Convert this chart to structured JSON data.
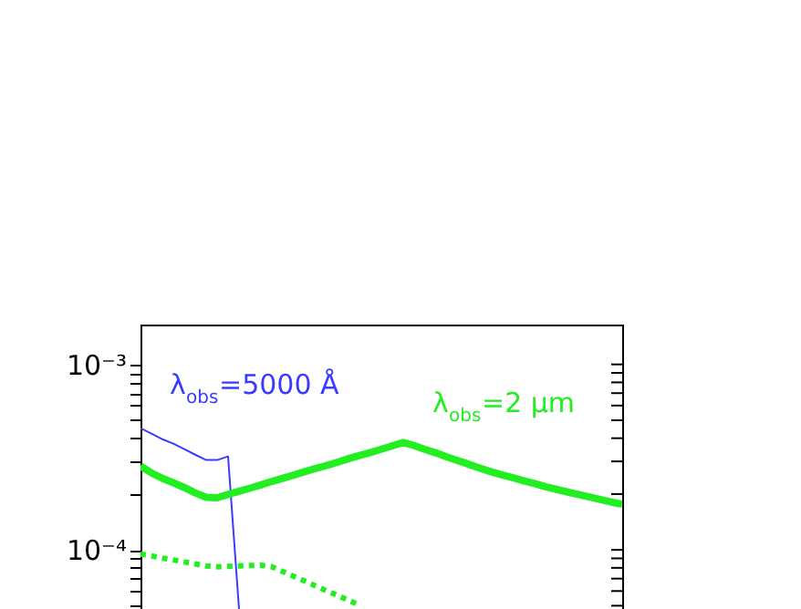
{
  "chart_data": {
    "type": "line",
    "categories": [
      null,
      null,
      null,
      null,
      null,
      null,
      null,
      null,
      null,
      null,
      null,
      null,
      null,
      null,
      null,
      null,
      null,
      null,
      null,
      null,
      null,
      null,
      null,
      null,
      null,
      null,
      null,
      null,
      null,
      null,
      null,
      null,
      null,
      null,
      null,
      null,
      null,
      null,
      null,
      null,
      null,
      null,
      null,
      null,
      null
    ],
    "series": [
      {
        "color": "#3b3bff",
        "line_style": "solid",
        "values": [
          0.000453,
          0.000423,
          0.000395,
          0.000374,
          0.000349,
          0.000326,
          0.000305,
          0.000305,
          0.000319,
          4.8e-05,
          null,
          null,
          null,
          null,
          null,
          null,
          null,
          null,
          null,
          null,
          null,
          null,
          null,
          null,
          null,
          null,
          null,
          null,
          null,
          null,
          null,
          null,
          null,
          null,
          null,
          null,
          null,
          null,
          null,
          null,
          null,
          null,
          null,
          null,
          null
        ]
      },
      {
        "color": "#22ee22",
        "line_style": "solid",
        "values": [
          0.000283,
          0.00026,
          0.000243,
          0.00023,
          0.000217,
          0.000203,
          0.000192,
          0.000191,
          0.000199,
          0.000207,
          0.000215,
          0.000224,
          0.000234,
          0.000243,
          0.000253,
          0.000264,
          0.000275,
          0.000285,
          0.000297,
          0.00031,
          0.000323,
          0.000335,
          0.000349,
          0.000364,
          0.000379,
          0.000365,
          0.000348,
          0.000333,
          0.000317,
          0.000303,
          0.000289,
          0.000276,
          0.000264,
          0.000254,
          0.000245,
          0.000236,
          0.000228,
          0.000219,
          0.000212,
          0.000205,
          0.000199,
          0.000193,
          0.000187,
          0.000181,
          0.000176
        ]
      },
      {
        "color": "#22ee22",
        "line_style": "dotted",
        "values": [
          9.49e-05,
          9.28e-05,
          9.03e-05,
          8.83e-05,
          8.61e-05,
          8.4e-05,
          8.2e-05,
          8.11e-05,
          8.15e-05,
          8.2e-05,
          8.23e-05,
          8.27e-05,
          8.11e-05,
          7.64e-05,
          7.2e-05,
          6.79e-05,
          6.39e-05,
          6.02e-05,
          5.68e-05,
          5.35e-05,
          5.04e-05,
          null,
          null,
          null,
          null,
          null,
          null,
          null,
          null,
          null,
          null,
          null,
          null,
          null,
          null,
          null,
          null,
          null,
          null,
          null,
          null,
          null,
          null,
          null,
          null
        ]
      }
    ],
    "log": true,
    "ylim": [
      4.8e-05,
      0.00164
    ],
    "yticks": [
      {
        "value": 0.001,
        "label": "10⁻³"
      },
      {
        "value": 0.0001,
        "label": "10⁻⁴"
      },
      {
        "value": 0.0009,
        "label": null
      },
      {
        "value": 0.0008,
        "label": null
      },
      {
        "value": 0.0007,
        "label": null
      },
      {
        "value": 0.0006,
        "label": null
      },
      {
        "value": 0.0005,
        "label": null
      },
      {
        "value": 0.0004,
        "label": null
      },
      {
        "value": 0.0003,
        "label": null
      },
      {
        "value": 0.0002,
        "label": null
      },
      {
        "value": 9e-05,
        "label": null
      },
      {
        "value": 8e-05,
        "label": null
      },
      {
        "value": 7e-05,
        "label": null
      },
      {
        "value": 6e-05,
        "label": null
      },
      {
        "value": 5e-05,
        "label": null
      }
    ],
    "annotations": [
      "λ$_{obs}$=5000 Å",
      "λ$_{obs}$=2 μm"
    ],
    "grid": false,
    "tick_labels": "y"
  }
}
